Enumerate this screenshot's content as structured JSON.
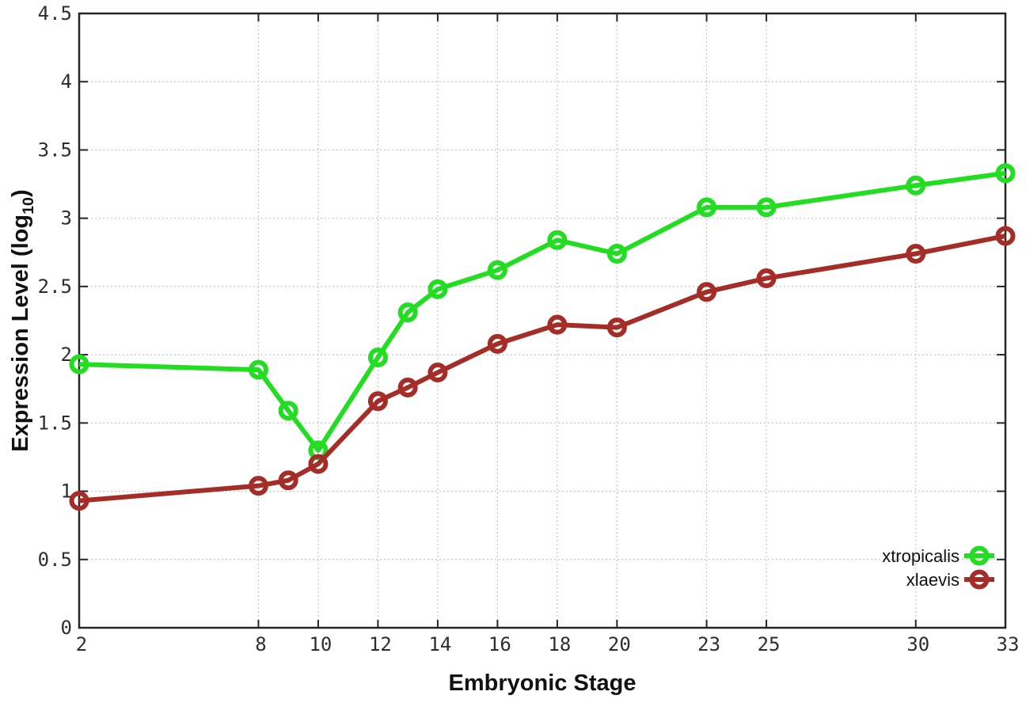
{
  "figure": {
    "background": "#ffffff",
    "xlabel": "Embryonic Stage",
    "ylabel_prefix": "Expression Level (log",
    "ylabel_sub": "10",
    "ylabel_suffix": ")",
    "border_color": "#262626",
    "grid_color": "#c4c4c4",
    "tick_label_color": "#2e2e2e",
    "legend_text_color": "#111111"
  },
  "chart_data": {
    "type": "line",
    "x": [
      2,
      8,
      9,
      10,
      12,
      13,
      14,
      16,
      18,
      20,
      23,
      25,
      30,
      33
    ],
    "series": [
      {
        "name": "xtropicalis",
        "color": "#22dd22",
        "values": [
          1.93,
          1.89,
          1.59,
          1.3,
          1.98,
          2.31,
          2.48,
          2.62,
          2.84,
          2.74,
          3.08,
          3.08,
          3.24,
          3.33
        ]
      },
      {
        "name": "xlaevis",
        "color": "#a52d28",
        "values": [
          0.93,
          1.04,
          1.08,
          1.2,
          1.66,
          1.76,
          1.87,
          2.08,
          2.22,
          2.2,
          2.46,
          2.56,
          2.74,
          2.87
        ]
      }
    ],
    "title": "",
    "xlabel": "Embryonic Stage",
    "ylabel": "Expression Level (log10)",
    "xlim": [
      2,
      33
    ],
    "ylim": [
      0,
      4.5
    ],
    "x_ticks": [
      2,
      8,
      10,
      12,
      14,
      16,
      18,
      20,
      23,
      25,
      30,
      33
    ],
    "x_tick_labels": [
      "2",
      "8",
      "10",
      "12",
      "14",
      "16",
      "18",
      "20",
      "23",
      "25",
      "30",
      "33"
    ],
    "y_ticks": [
      0,
      0.5,
      1,
      1.5,
      2,
      2.5,
      3,
      3.5,
      4,
      4.5
    ],
    "y_tick_labels": [
      "0",
      "0.5",
      "1",
      "1.5",
      "2",
      "2.5",
      "3",
      "3.5",
      "4",
      "4.5"
    ],
    "grid": true,
    "grid_style": "dotted",
    "marker": "open-circle",
    "legend_position": "bottom-right",
    "legend_entries": [
      "xtropicalis",
      "xlaevis"
    ]
  }
}
